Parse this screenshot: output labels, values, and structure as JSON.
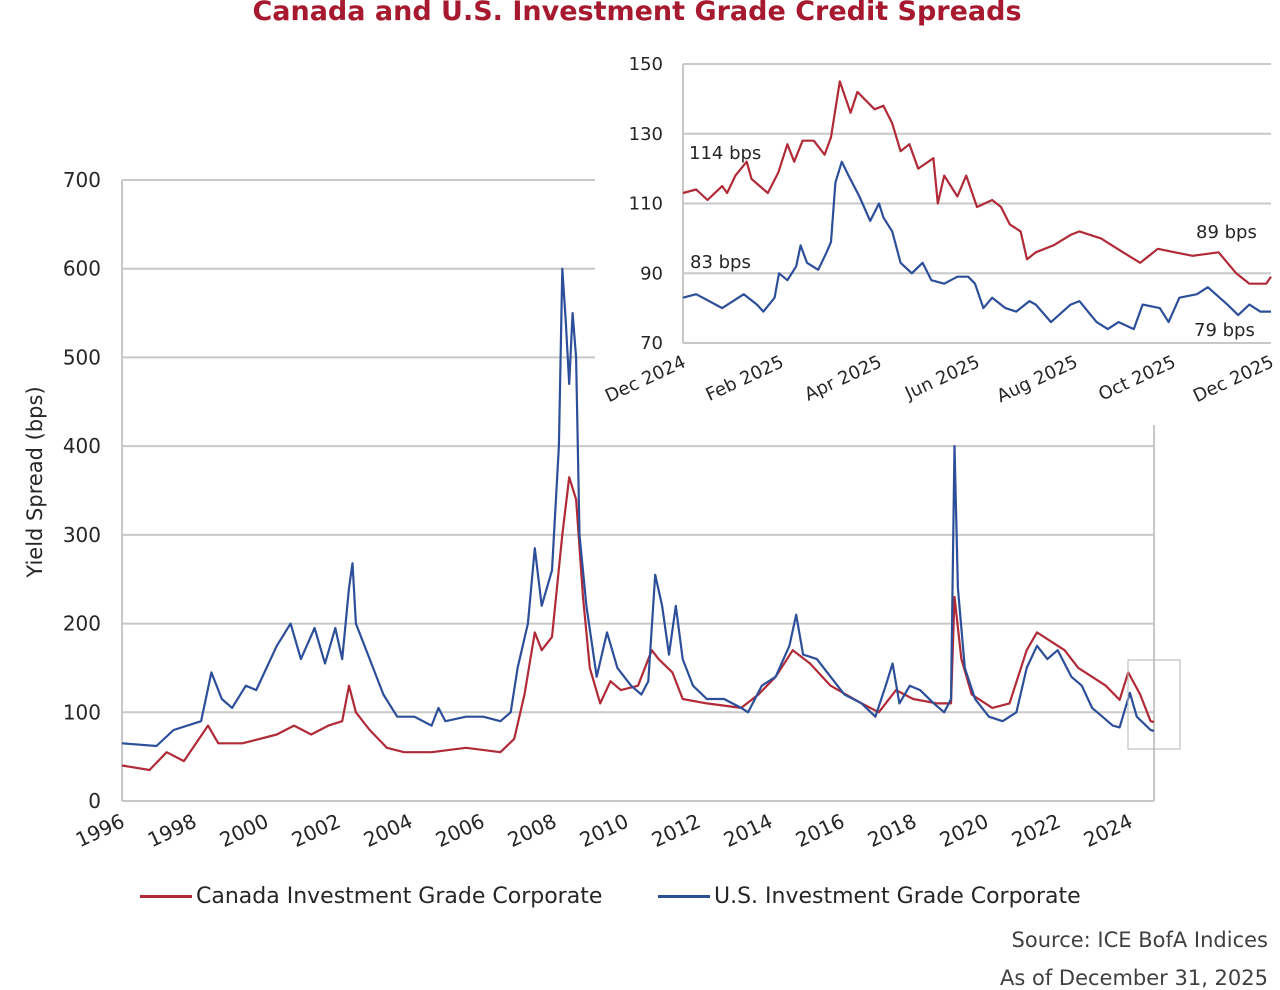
{
  "title": "Canada and U.S. Investment Grade Credit Spreads",
  "source": "Source: ICE BofA Indices",
  "as_of": "As of December 31, 2025",
  "colors": {
    "canada": "#b02a37",
    "us": "#2d4f9a",
    "grid": "#c8c8c8"
  },
  "legend": [
    {
      "label": "Canada Investment Grade Corporate",
      "color": "#b02a37"
    },
    {
      "label": "U.S. Investment Grade Corporate",
      "color": "#2d4f9a"
    }
  ],
  "chart_data": [
    {
      "type": "line",
      "title": "",
      "ylabel": "Yield Spread (bps)",
      "xlabel": "",
      "ylim": [
        0,
        700
      ],
      "yticks": [
        0,
        100,
        200,
        300,
        400,
        500,
        600,
        700
      ],
      "xlim": [
        1996,
        2026
      ],
      "xticks": [
        "1996",
        "1998",
        "2000",
        "2002",
        "2004",
        "2006",
        "2008",
        "2010",
        "2012",
        "2014",
        "2016",
        "2018",
        "2020",
        "2022",
        "2024"
      ],
      "grid": true,
      "legend_position": "bottom",
      "series": [
        {
          "name": "Canada Investment Grade Corporate",
          "x": [
            1996,
            1996.8,
            1997.3,
            1997.8,
            1998.5,
            1998.8,
            1999.5,
            2000.5,
            2001,
            2001.5,
            2002,
            2002.4,
            2002.6,
            2002.8,
            2003.2,
            2003.7,
            2004.2,
            2005,
            2006,
            2007,
            2007.4,
            2007.7,
            2008,
            2008.2,
            2008.5,
            2008.8,
            2009,
            2009.2,
            2009.4,
            2009.6,
            2009.9,
            2010.2,
            2010.5,
            2011,
            2011.4,
            2011.6,
            2012,
            2012.3,
            2013,
            2014,
            2014.5,
            2015,
            2015.5,
            2016,
            2016.6,
            2017.5,
            2018,
            2018.5,
            2019,
            2019.7,
            2020.1,
            2020.2,
            2020.4,
            2020.7,
            2021.3,
            2021.8,
            2022.3,
            2022.6,
            2023,
            2023.4,
            2023.8,
            2024.2,
            2024.6,
            2025,
            2025.25,
            2025.6,
            2025.9,
            2026
          ],
          "y": [
            40,
            35,
            55,
            45,
            85,
            65,
            65,
            75,
            85,
            75,
            85,
            90,
            130,
            100,
            80,
            60,
            55,
            55,
            60,
            55,
            70,
            120,
            190,
            170,
            185,
            300,
            365,
            340,
            230,
            150,
            110,
            135,
            125,
            130,
            170,
            160,
            145,
            115,
            110,
            105,
            120,
            140,
            170,
            155,
            130,
            110,
            100,
            125,
            115,
            110,
            110,
            230,
            160,
            120,
            105,
            110,
            170,
            190,
            180,
            170,
            150,
            140,
            130,
            114,
            145,
            120,
            90,
            89
          ]
        },
        {
          "name": "U.S. Investment Grade Corporate",
          "x": [
            1996,
            1997,
            1997.5,
            1998.3,
            1998.6,
            1998.9,
            1999.2,
            1999.6,
            1999.9,
            2000.5,
            2000.9,
            2001.2,
            2001.6,
            2001.9,
            2002.2,
            2002.4,
            2002.6,
            2002.7,
            2002.8,
            2003.2,
            2003.6,
            2004,
            2004.5,
            2005,
            2005.2,
            2005.4,
            2006,
            2006.5,
            2007,
            2007.3,
            2007.5,
            2007.8,
            2008,
            2008.2,
            2008.5,
            2008.7,
            2008.8,
            2008.9,
            2009,
            2009.1,
            2009.2,
            2009.3,
            2009.5,
            2009.8,
            2010.1,
            2010.4,
            2010.8,
            2011.1,
            2011.3,
            2011.5,
            2011.7,
            2011.9,
            2012.1,
            2012.3,
            2012.6,
            2013,
            2013.5,
            2014,
            2014.2,
            2014.6,
            2015,
            2015.4,
            2015.6,
            2015.8,
            2016.2,
            2016.6,
            2017,
            2017.5,
            2017.9,
            2018.2,
            2018.4,
            2018.6,
            2018.9,
            2019.2,
            2019.6,
            2019.9,
            2020.1,
            2020.2,
            2020.3,
            2020.5,
            2020.8,
            2021.2,
            2021.6,
            2022,
            2022.3,
            2022.6,
            2022.9,
            2023.2,
            2023.6,
            2023.9,
            2024.2,
            2024.5,
            2024.8,
            2025,
            2025.3,
            2025.5,
            2025.9,
            2026
          ],
          "y": [
            65,
            62,
            80,
            90,
            145,
            115,
            105,
            130,
            125,
            175,
            200,
            160,
            195,
            155,
            195,
            160,
            240,
            268,
            200,
            160,
            120,
            95,
            95,
            85,
            105,
            90,
            95,
            95,
            90,
            100,
            150,
            200,
            285,
            220,
            260,
            400,
            600,
            540,
            470,
            550,
            500,
            300,
            220,
            140,
            190,
            150,
            130,
            120,
            135,
            255,
            220,
            165,
            220,
            160,
            130,
            115,
            115,
            105,
            100,
            130,
            140,
            175,
            210,
            165,
            160,
            140,
            120,
            110,
            95,
            130,
            155,
            110,
            130,
            125,
            110,
            100,
            115,
            400,
            240,
            150,
            115,
            95,
            90,
            100,
            150,
            175,
            160,
            170,
            140,
            130,
            105,
            95,
            85,
            83,
            122,
            95,
            80,
            79
          ]
        }
      ]
    },
    {
      "type": "line",
      "title": "",
      "ylim": [
        70,
        150
      ],
      "yticks": [
        70,
        90,
        110,
        130,
        150
      ],
      "xlim": [
        "Dec 2024",
        "Dec 2025"
      ],
      "xticks": [
        "Dec 2024",
        "Feb 2025",
        "Apr 2025",
        "Jun 2025",
        "Aug 2025",
        "Oct 2025",
        "Dec 2025"
      ],
      "grid": true,
      "annotations": [
        "114 bps",
        "83 bps",
        "89 bps",
        "79 bps"
      ],
      "series": [
        {
          "name": "Canada Investment Grade Corporate",
          "months_since_dec_2024": [
            0,
            0.27,
            0.5,
            0.8,
            0.9,
            1.07,
            1.3,
            1.4,
            1.73,
            1.95,
            2.13,
            2.27,
            2.44,
            2.67,
            2.89,
            3.02,
            3.2,
            3.42,
            3.56,
            3.91,
            4.09,
            4.27,
            4.44,
            4.62,
            4.8,
            5.11,
            5.2,
            5.33,
            5.6,
            5.78,
            6.0,
            6.31,
            6.49,
            6.67,
            6.89,
            7.02,
            7.2,
            7.56,
            7.91,
            8.09,
            8.53,
            8.98,
            9.33,
            9.69,
            10.04,
            10.4,
            10.93,
            11.29,
            11.56,
            11.9,
            12
          ],
          "y": [
            113,
            114,
            111,
            115,
            113,
            118,
            122,
            117,
            113,
            119,
            127,
            122,
            128,
            128,
            124,
            129,
            145,
            136,
            142,
            137,
            138,
            133,
            125,
            127,
            120,
            123,
            110,
            118,
            112,
            118,
            109,
            111,
            109,
            104,
            102,
            94,
            96,
            98,
            101,
            102,
            100,
            96,
            93,
            97,
            96,
            95,
            96,
            90,
            87,
            87,
            89
          ]
        },
        {
          "name": "U.S. Investment Grade Corporate",
          "months_since_dec_2024": [
            0,
            0.27,
            0.8,
            1.24,
            1.51,
            1.64,
            1.87,
            1.96,
            2.13,
            2.31,
            2.4,
            2.53,
            2.76,
            2.93,
            3.02,
            3.11,
            3.24,
            3.38,
            3.6,
            3.82,
            4.0,
            4.09,
            4.27,
            4.44,
            4.67,
            4.89,
            5.07,
            5.33,
            5.6,
            5.82,
            5.96,
            6.13,
            6.31,
            6.58,
            6.8,
            7.07,
            7.2,
            7.51,
            7.91,
            8.09,
            8.44,
            8.67,
            8.89,
            9.2,
            9.38,
            9.73,
            9.91,
            10.13,
            10.49,
            10.71,
            11.11,
            11.33,
            11.56,
            11.78,
            12
          ],
          "y": [
            83,
            84,
            80,
            84,
            81,
            79,
            83,
            90,
            88,
            92,
            98,
            93,
            91,
            96,
            99,
            116,
            122,
            118,
            112,
            105,
            110,
            106,
            102,
            93,
            90,
            93,
            88,
            87,
            89,
            89,
            87,
            80,
            83,
            80,
            79,
            82,
            81,
            76,
            81,
            82,
            76,
            74,
            76,
            74,
            81,
            80,
            76,
            83,
            84,
            86,
            81,
            78,
            81,
            79,
            79
          ]
        }
      ]
    }
  ]
}
